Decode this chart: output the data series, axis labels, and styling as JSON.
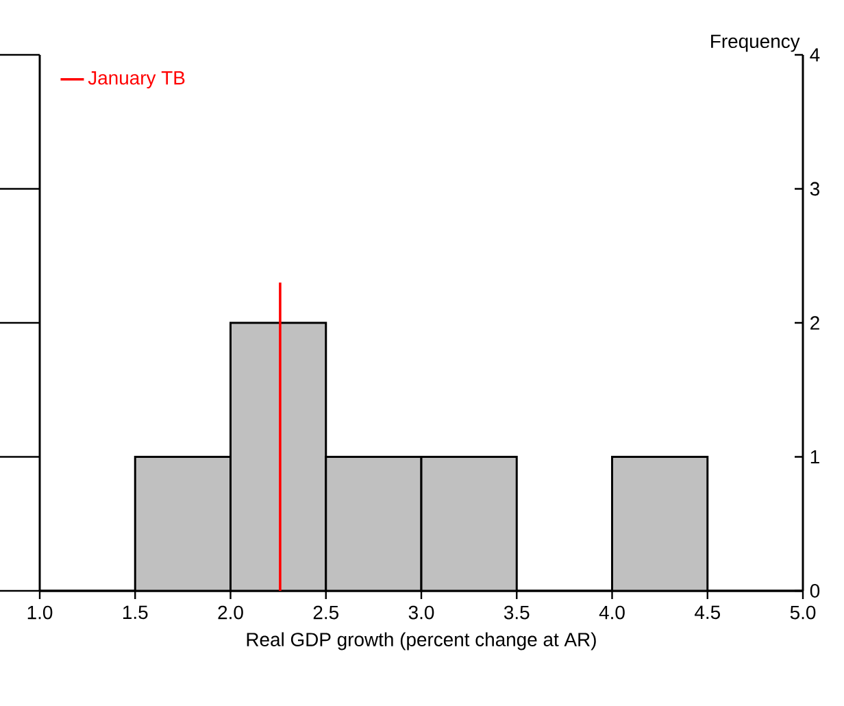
{
  "chart_data": {
    "type": "histogram",
    "xlabel": "Real GDP growth (percent change at AR)",
    "ylabel": "Frequency",
    "bins": [
      1.0,
      1.5,
      2.0,
      2.5,
      3.0,
      3.5,
      4.0,
      4.5,
      5.0
    ],
    "values": [
      0,
      1,
      2,
      1,
      1,
      0,
      1,
      0
    ],
    "color": "#c0c0c0",
    "xlim": [
      1,
      5
    ],
    "xticks": [
      {
        "value": 1,
        "label": "1.0"
      },
      {
        "value": 1.5,
        "label": "1.5"
      },
      {
        "value": 2,
        "label": "2.0"
      },
      {
        "value": 2.5,
        "label": "2.5"
      },
      {
        "value": 3,
        "label": "3.0"
      },
      {
        "value": 3.5,
        "label": "3.5"
      },
      {
        "value": 4,
        "label": "4.0"
      },
      {
        "value": 4.5,
        "label": "4.5"
      },
      {
        "value": 5,
        "label": "5.0"
      }
    ],
    "ylim": [
      0,
      4
    ],
    "yticks": [
      0,
      1,
      2,
      3,
      4
    ],
    "series": [
      {
        "type": "line",
        "name": "January TB",
        "color": "#ff0000",
        "x": [
          2.26,
          2.26
        ],
        "values": [
          0,
          2.3
        ]
      }
    ],
    "legend": "top left"
  }
}
